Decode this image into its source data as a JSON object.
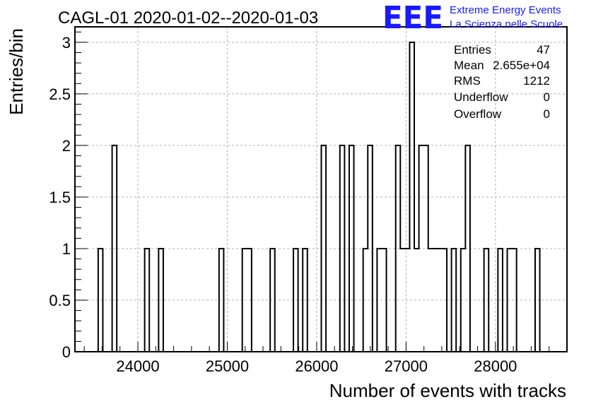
{
  "colors": {
    "frame": "#000000",
    "grid": "#b0b0b0",
    "logo": "#1a1aff",
    "background": "#ffffff"
  },
  "logo": {
    "mark": "EEE",
    "line1": "Extreme Energy Events",
    "line2": "La Scienza nelle Scuole"
  },
  "stats": {
    "entries_label": "Entries",
    "entries_value": "47",
    "mean_label": "Mean",
    "mean_value": "2.655e+04",
    "rms_label": "RMS",
    "rms_value": "1212",
    "underflow_label": "Underflow",
    "underflow_value": "0",
    "overflow_label": "Overflow",
    "overflow_value": "0"
  },
  "chart_data": {
    "type": "bar",
    "style": "step-histogram",
    "title": "CAGL-01 2020-01-02--2020-01-03",
    "xlabel": "Number of events with tracks",
    "ylabel": "Entries/bin",
    "xlim": [
      23296,
      28800
    ],
    "ylim": [
      0,
      3.15
    ],
    "bin_width": 52,
    "grid": true,
    "legend_position": "top-right",
    "x_ticks": [
      24000,
      25000,
      26000,
      27000,
      28000
    ],
    "x_tick_labels": [
      "24000",
      "25000",
      "26000",
      "27000",
      "28000"
    ],
    "y_ticks": [
      0,
      0.5,
      1,
      1.5,
      2,
      2.5,
      3
    ],
    "y_tick_labels": [
      "0",
      "0.5",
      "1",
      "1.5",
      "2",
      "2.5",
      "3"
    ],
    "bins": [
      {
        "x0": 23556,
        "count": 1
      },
      {
        "x0": 23712,
        "count": 2
      },
      {
        "x0": 24076,
        "count": 1
      },
      {
        "x0": 24232,
        "count": 1
      },
      {
        "x0": 24908,
        "count": 1
      },
      {
        "x0": 25168,
        "count": 1
      },
      {
        "x0": 25220,
        "count": 1
      },
      {
        "x0": 25480,
        "count": 1
      },
      {
        "x0": 25740,
        "count": 1
      },
      {
        "x0": 25844,
        "count": 1
      },
      {
        "x0": 26052,
        "count": 2
      },
      {
        "x0": 26260,
        "count": 2
      },
      {
        "x0": 26364,
        "count": 2
      },
      {
        "x0": 26520,
        "count": 1
      },
      {
        "x0": 26572,
        "count": 2
      },
      {
        "x0": 26676,
        "count": 1
      },
      {
        "x0": 26728,
        "count": 1
      },
      {
        "x0": 26884,
        "count": 2
      },
      {
        "x0": 26936,
        "count": 1
      },
      {
        "x0": 26988,
        "count": 1
      },
      {
        "x0": 27040,
        "count": 3
      },
      {
        "x0": 27092,
        "count": 1
      },
      {
        "x0": 27144,
        "count": 2
      },
      {
        "x0": 27196,
        "count": 2
      },
      {
        "x0": 27248,
        "count": 1
      },
      {
        "x0": 27300,
        "count": 1
      },
      {
        "x0": 27352,
        "count": 1
      },
      {
        "x0": 27404,
        "count": 1
      },
      {
        "x0": 27508,
        "count": 1
      },
      {
        "x0": 27612,
        "count": 1
      },
      {
        "x0": 27664,
        "count": 2
      },
      {
        "x0": 27872,
        "count": 1
      },
      {
        "x0": 28028,
        "count": 1
      },
      {
        "x0": 28132,
        "count": 1
      },
      {
        "x0": 28184,
        "count": 1
      },
      {
        "x0": 28444,
        "count": 1
      }
    ]
  }
}
